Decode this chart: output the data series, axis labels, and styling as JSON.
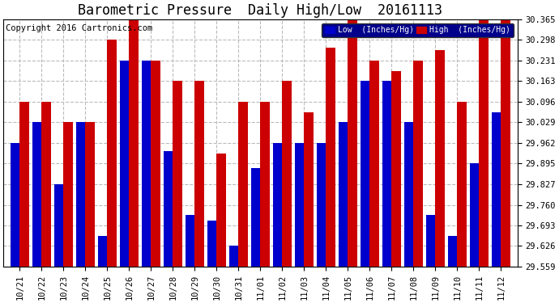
{
  "title": "Barometric Pressure  Daily High/Low  20161113",
  "copyright": "Copyright 2016 Cartronics.com",
  "background_color": "#ffffff",
  "plot_bg_color": "#ffffff",
  "grid_color": "#bbbbbb",
  "categories": [
    "10/21",
    "10/22",
    "10/23",
    "10/24",
    "10/25",
    "10/26",
    "10/27",
    "10/28",
    "10/29",
    "10/30",
    "10/31",
    "11/01",
    "11/02",
    "11/03",
    "11/04",
    "11/05",
    "11/06",
    "11/07",
    "11/08",
    "11/09",
    "11/10",
    "11/11",
    "11/12"
  ],
  "low_values": [
    29.962,
    30.029,
    29.827,
    30.029,
    29.659,
    30.231,
    30.231,
    29.935,
    29.727,
    29.71,
    29.626,
    29.88,
    29.962,
    29.962,
    29.962,
    30.029,
    30.163,
    30.163,
    30.029,
    29.727,
    29.659,
    29.895,
    30.062
  ],
  "high_values": [
    30.096,
    30.096,
    30.029,
    30.029,
    30.298,
    30.365,
    30.231,
    30.163,
    30.163,
    29.928,
    30.096,
    30.096,
    30.163,
    30.062,
    30.271,
    30.365,
    30.231,
    30.197,
    30.231,
    30.265,
    30.096,
    30.365,
    30.365
  ],
  "low_color": "#0000cc",
  "high_color": "#cc0000",
  "ylim_min": 29.559,
  "ylim_max": 30.365,
  "yticks": [
    29.559,
    29.626,
    29.693,
    29.76,
    29.827,
    29.895,
    29.962,
    30.029,
    30.096,
    30.163,
    30.231,
    30.298,
    30.365
  ],
  "legend_low_label": "Low  (Inches/Hg)",
  "legend_high_label": "High  (Inches/Hg)",
  "title_fontsize": 12,
  "copyright_fontsize": 7.5,
  "tick_fontsize": 7.5,
  "bar_width": 0.42
}
